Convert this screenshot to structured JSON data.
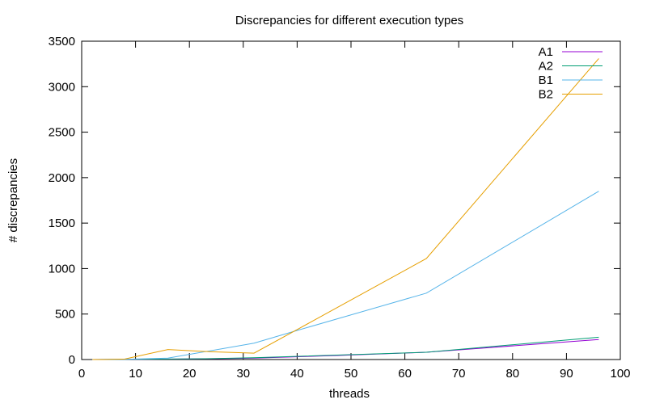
{
  "chart_data": {
    "type": "line",
    "title": "Discrepancies for different execution types",
    "xlabel": "threads",
    "ylabel": "# discrepancies",
    "xlim": [
      0,
      100
    ],
    "ylim": [
      0,
      3500
    ],
    "xticks": [
      0,
      10,
      20,
      30,
      40,
      50,
      60,
      70,
      80,
      90,
      100
    ],
    "yticks": [
      0,
      500,
      1000,
      1500,
      2000,
      2500,
      3000,
      3500
    ],
    "grid": false,
    "legend_position": "top-right",
    "series": [
      {
        "name": "A1",
        "color": "#9400d3",
        "points": [
          [
            2,
            0
          ],
          [
            4,
            1
          ],
          [
            8,
            2
          ],
          [
            16,
            4
          ],
          [
            24,
            8
          ],
          [
            32,
            15
          ],
          [
            48,
            45
          ],
          [
            64,
            80
          ],
          [
            96,
            220
          ]
        ]
      },
      {
        "name": "A2",
        "color": "#009e73",
        "points": [
          [
            2,
            0
          ],
          [
            4,
            1
          ],
          [
            8,
            2
          ],
          [
            16,
            5
          ],
          [
            24,
            10
          ],
          [
            32,
            20
          ],
          [
            48,
            50
          ],
          [
            64,
            80
          ],
          [
            96,
            245
          ]
        ]
      },
      {
        "name": "B1",
        "color": "#56b4e9",
        "points": [
          [
            2,
            0
          ],
          [
            4,
            1
          ],
          [
            8,
            3
          ],
          [
            16,
            15
          ],
          [
            32,
            180
          ],
          [
            40,
            320
          ],
          [
            64,
            730
          ],
          [
            96,
            1850
          ]
        ]
      },
      {
        "name": "B2",
        "color": "#e69f00",
        "points": [
          [
            2,
            0
          ],
          [
            4,
            0
          ],
          [
            8,
            5
          ],
          [
            16,
            110
          ],
          [
            24,
            85
          ],
          [
            32,
            70
          ],
          [
            40,
            330
          ],
          [
            64,
            1110
          ],
          [
            96,
            3310
          ]
        ]
      }
    ]
  }
}
